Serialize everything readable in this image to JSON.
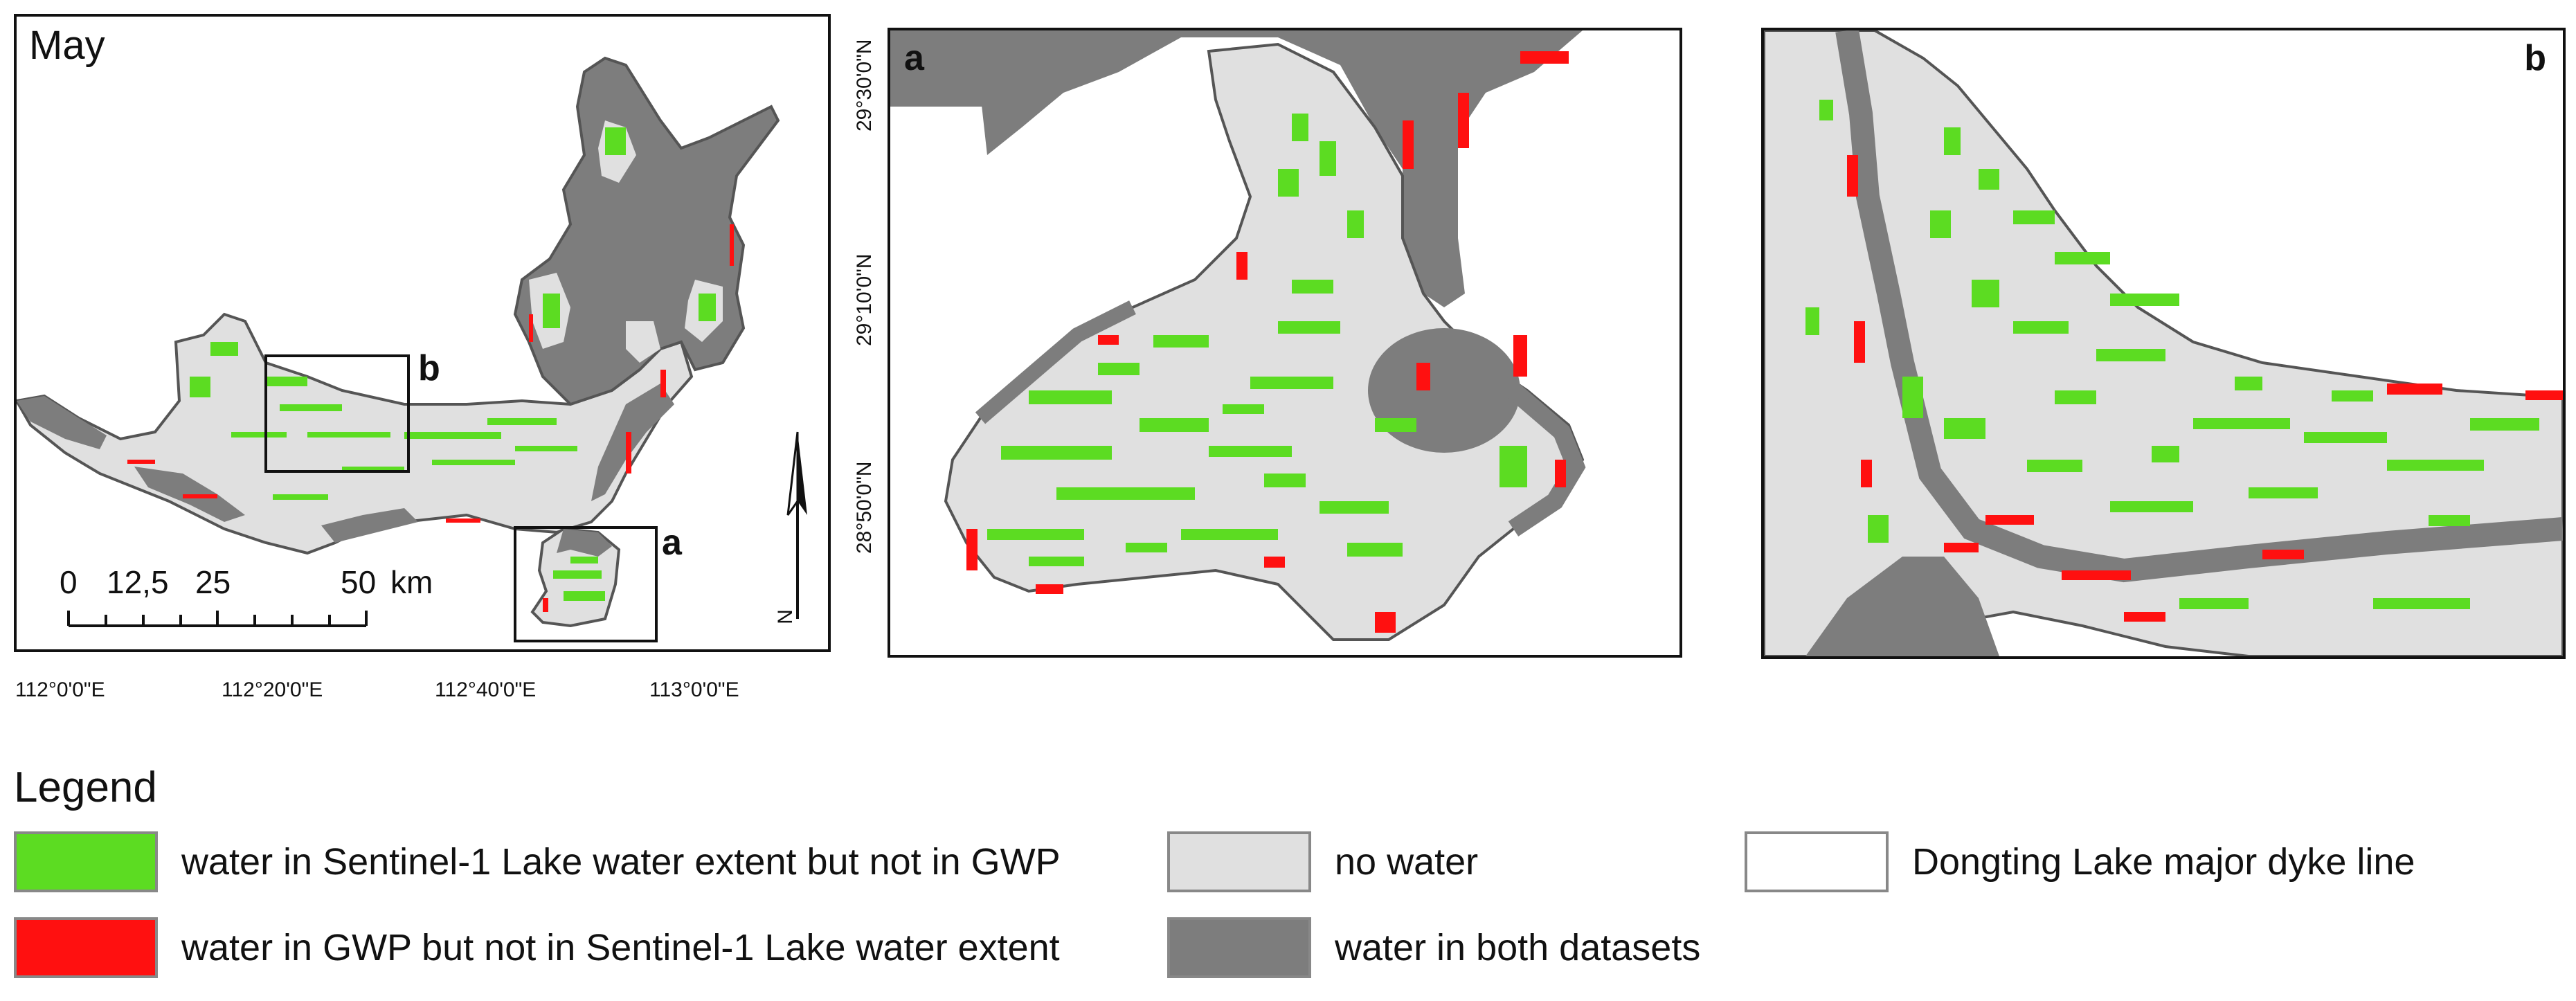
{
  "overview_map": {
    "month_label": "May",
    "inset_a_label": "a",
    "inset_b_label": "b",
    "scale_ticks": [
      "0",
      "12,5",
      "25",
      "50"
    ],
    "scale_unit": "km",
    "north_label": "N",
    "lon_labels": [
      "112°0'0\"E",
      "112°20'0\"E",
      "112°40'0\"E",
      "113°0'0\"E"
    ],
    "lat_labels": [
      "29°30'0\"N",
      "29°10'0\"N",
      "28°50'0\"N"
    ]
  },
  "detail_a": {
    "label": "a"
  },
  "detail_b": {
    "label": "b"
  },
  "legend": {
    "title": "Legend",
    "items": [
      {
        "label": "water in Sentinel-1 Lake water extent but not in GWP",
        "color": "#5cdc22"
      },
      {
        "label": "water in GWP but not in Sentinel-1 Lake water extent",
        "color": "#ff1010"
      },
      {
        "label": "no water",
        "color": "#e0e0e0"
      },
      {
        "label": "water in both datasets",
        "color": "#7d7d7d"
      },
      {
        "label": "Dongting Lake major dyke line",
        "color": "#ffffff"
      }
    ]
  },
  "colors": {
    "green": "#5cdc22",
    "red": "#ff1010",
    "light": "#e0e0e0",
    "dark": "#7d7d7d",
    "outline": "#555555"
  }
}
